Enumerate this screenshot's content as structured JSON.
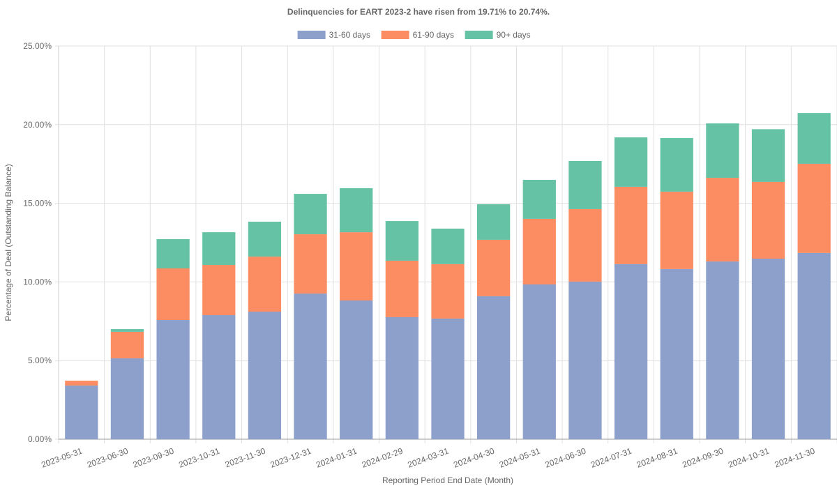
{
  "chart_data": {
    "type": "stacked-bar",
    "title": "Delinquencies for EART 2023-2 have risen from 19.71% to 20.74%.",
    "x_label": "Reporting Period End Date (Month)",
    "y_label": "Percentage of Deal (Outstanding Balance)",
    "categories": [
      "2023-05-31",
      "2023-06-30",
      "2023-09-30",
      "2023-10-31",
      "2023-11-30",
      "2023-12-31",
      "2024-01-31",
      "2024-02-29",
      "2024-03-31",
      "2024-04-30",
      "2024-05-31",
      "2024-06-30",
      "2024-07-31",
      "2024-08-31",
      "2024-09-30",
      "2024-10-31",
      "2024-11-30"
    ],
    "series": [
      {
        "name": "31-60 days",
        "color": "#8da0cb",
        "values": [
          3.41,
          5.14,
          7.58,
          7.89,
          8.11,
          9.26,
          8.82,
          7.76,
          7.67,
          9.09,
          9.84,
          10.02,
          11.13,
          10.82,
          11.3,
          11.48,
          11.84
        ]
      },
      {
        "name": "61-90 days",
        "color": "#fc8d62",
        "values": [
          0.31,
          1.69,
          3.28,
          3.19,
          3.5,
          3.77,
          4.34,
          3.59,
          3.46,
          3.59,
          4.17,
          4.61,
          4.92,
          4.92,
          5.32,
          4.88,
          5.67
        ]
      },
      {
        "name": "90+ days",
        "color": "#66c2a5",
        "values": [
          0,
          0.17,
          1.86,
          2.08,
          2.22,
          2.57,
          2.8,
          2.52,
          2.26,
          2.26,
          2.48,
          3.06,
          3.14,
          3.41,
          3.46,
          3.35,
          3.23
        ]
      }
    ],
    "ylim": [
      0,
      25
    ],
    "yticks": [
      {
        "value": 0,
        "label": "0.00%"
      },
      {
        "value": 5,
        "label": "5.00%"
      },
      {
        "value": 10,
        "label": "10.00%"
      },
      {
        "value": 15,
        "label": "15.00%"
      },
      {
        "value": 20,
        "label": "20.00%"
      },
      {
        "value": 25,
        "label": "25.00%"
      }
    ],
    "grid": true,
    "legend": "top"
  }
}
